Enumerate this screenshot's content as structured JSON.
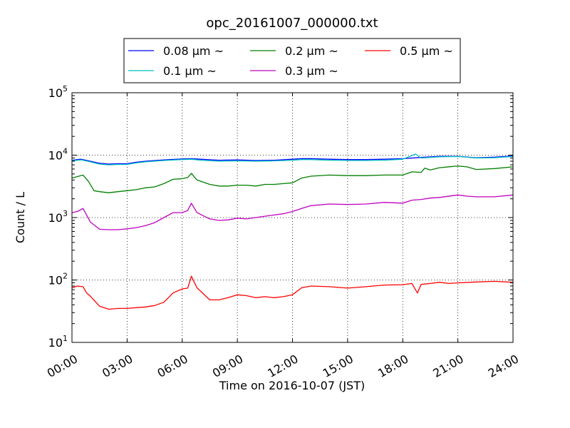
{
  "chart_data": {
    "type": "line",
    "title": "opc_20161007_000000.txt",
    "xlabel": "Time on 2016-10-07 (JST)",
    "ylabel": "Count / L",
    "x_unit": "hours",
    "xlim": [
      0,
      24
    ],
    "ylim": [
      10,
      100000
    ],
    "yscale": "log",
    "grid": true,
    "legend_position": "top",
    "x_ticks": [
      {
        "value": 0,
        "label": "00:00"
      },
      {
        "value": 3,
        "label": "03:00"
      },
      {
        "value": 6,
        "label": "06:00"
      },
      {
        "value": 9,
        "label": "09:00"
      },
      {
        "value": 12,
        "label": "12:00"
      },
      {
        "value": 15,
        "label": "15:00"
      },
      {
        "value": 18,
        "label": "18:00"
      },
      {
        "value": 21,
        "label": "21:00"
      },
      {
        "value": 24,
        "label": "24:00"
      }
    ],
    "y_ticks": [
      {
        "value": 10,
        "base": "10",
        "exp": "1"
      },
      {
        "value": 100,
        "base": "10",
        "exp": "2"
      },
      {
        "value": 1000,
        "base": "10",
        "exp": "3"
      },
      {
        "value": 10000,
        "base": "10",
        "exp": "4"
      },
      {
        "value": 100000,
        "base": "10",
        "exp": "5"
      }
    ],
    "series": [
      {
        "name": "0.08 μm ~",
        "color": "#0000ff",
        "points": [
          [
            0,
            8300
          ],
          [
            0.5,
            8600
          ],
          [
            1,
            8000
          ],
          [
            1.5,
            7400
          ],
          [
            2,
            7200
          ],
          [
            2.5,
            7300
          ],
          [
            3,
            7300
          ],
          [
            3.5,
            7700
          ],
          [
            4,
            8000
          ],
          [
            5,
            8400
          ],
          [
            6,
            8700
          ],
          [
            6.5,
            8800
          ],
          [
            7,
            8600
          ],
          [
            8,
            8300
          ],
          [
            9,
            8400
          ],
          [
            10,
            8200
          ],
          [
            11,
            8300
          ],
          [
            12,
            8600
          ],
          [
            12.5,
            8800
          ],
          [
            13,
            8800
          ],
          [
            14,
            8600
          ],
          [
            15,
            8500
          ],
          [
            16,
            8500
          ],
          [
            17,
            8600
          ],
          [
            18,
            8800
          ],
          [
            19,
            9200
          ],
          [
            20,
            9600
          ],
          [
            21,
            9600
          ],
          [
            22,
            9100
          ],
          [
            23,
            9300
          ],
          [
            24,
            9700
          ]
        ]
      },
      {
        "name": "0.1 μm ~",
        "color": "#00bfbf",
        "points": [
          [
            0,
            8100
          ],
          [
            0.5,
            8400
          ],
          [
            1,
            7800
          ],
          [
            1.5,
            7200
          ],
          [
            2,
            7000
          ],
          [
            2.5,
            7100
          ],
          [
            3,
            7100
          ],
          [
            3.5,
            7500
          ],
          [
            4,
            7800
          ],
          [
            5,
            8200
          ],
          [
            6,
            8500
          ],
          [
            6.5,
            8600
          ],
          [
            7,
            8300
          ],
          [
            8,
            8000
          ],
          [
            9,
            8100
          ],
          [
            10,
            8000
          ],
          [
            11,
            8100
          ],
          [
            12,
            8300
          ],
          [
            12.5,
            8500
          ],
          [
            13,
            8500
          ],
          [
            14,
            8300
          ],
          [
            15,
            8200
          ],
          [
            16,
            8200
          ],
          [
            17,
            8300
          ],
          [
            18,
            8600
          ],
          [
            18.7,
            10400
          ],
          [
            19,
            9000
          ],
          [
            20,
            9400
          ],
          [
            21,
            9500
          ],
          [
            22,
            9000
          ],
          [
            23,
            9100
          ],
          [
            24,
            9500
          ]
        ]
      },
      {
        "name": "0.2 μm ~",
        "color": "#008000",
        "points": [
          [
            0,
            4300
          ],
          [
            0.6,
            4800
          ],
          [
            0.9,
            3800
          ],
          [
            1.2,
            2700
          ],
          [
            1.5,
            2600
          ],
          [
            2,
            2500
          ],
          [
            2.5,
            2600
          ],
          [
            3,
            2700
          ],
          [
            3.5,
            2800
          ],
          [
            4,
            3000
          ],
          [
            4.5,
            3100
          ],
          [
            5,
            3500
          ],
          [
            5.5,
            4100
          ],
          [
            6,
            4200
          ],
          [
            6.3,
            4400
          ],
          [
            6.5,
            5100
          ],
          [
            6.8,
            4000
          ],
          [
            7.5,
            3400
          ],
          [
            8,
            3200
          ],
          [
            8.5,
            3200
          ],
          [
            9,
            3300
          ],
          [
            9.5,
            3300
          ],
          [
            10,
            3200
          ],
          [
            10.5,
            3400
          ],
          [
            11,
            3400
          ],
          [
            11.5,
            3500
          ],
          [
            12,
            3600
          ],
          [
            12.5,
            4300
          ],
          [
            13,
            4600
          ],
          [
            14,
            4800
          ],
          [
            15,
            4700
          ],
          [
            16,
            4700
          ],
          [
            17,
            4800
          ],
          [
            18,
            4800
          ],
          [
            18.5,
            5400
          ],
          [
            19,
            5300
          ],
          [
            19.2,
            6200
          ],
          [
            19.5,
            5800
          ],
          [
            20,
            6300
          ],
          [
            21,
            6700
          ],
          [
            21.5,
            6500
          ],
          [
            22,
            5900
          ],
          [
            23,
            6100
          ],
          [
            24,
            6500
          ]
        ]
      },
      {
        "name": "0.3 μm ~",
        "color": "#bf00bf",
        "points": [
          [
            0,
            1200
          ],
          [
            0.3,
            1250
          ],
          [
            0.6,
            1400
          ],
          [
            0.8,
            1100
          ],
          [
            1,
            850
          ],
          [
            1.5,
            650
          ],
          [
            2,
            640
          ],
          [
            2.5,
            640
          ],
          [
            3,
            660
          ],
          [
            3.5,
            690
          ],
          [
            4,
            740
          ],
          [
            4.5,
            830
          ],
          [
            5,
            1000
          ],
          [
            5.5,
            1200
          ],
          [
            6,
            1200
          ],
          [
            6.3,
            1300
          ],
          [
            6.5,
            1700
          ],
          [
            6.8,
            1200
          ],
          [
            7.5,
            950
          ],
          [
            8,
            900
          ],
          [
            8.5,
            920
          ],
          [
            9,
            980
          ],
          [
            9.5,
            950
          ],
          [
            10,
            1000
          ],
          [
            10.5,
            1050
          ],
          [
            11,
            1100
          ],
          [
            11.5,
            1150
          ],
          [
            12,
            1250
          ],
          [
            12.5,
            1400
          ],
          [
            13,
            1550
          ],
          [
            14,
            1650
          ],
          [
            15,
            1620
          ],
          [
            16,
            1650
          ],
          [
            17,
            1750
          ],
          [
            18,
            1700
          ],
          [
            18.5,
            1900
          ],
          [
            19,
            1950
          ],
          [
            19.5,
            2050
          ],
          [
            20,
            2100
          ],
          [
            21,
            2300
          ],
          [
            21.5,
            2200
          ],
          [
            22,
            2150
          ],
          [
            23,
            2150
          ],
          [
            24,
            2300
          ]
        ]
      },
      {
        "name": "0.5 μm ~",
        "color": "#ff0000",
        "points": [
          [
            0,
            75
          ],
          [
            0.3,
            80
          ],
          [
            0.6,
            78
          ],
          [
            0.8,
            62
          ],
          [
            1,
            55
          ],
          [
            1.5,
            38
          ],
          [
            2,
            34
          ],
          [
            2.5,
            35
          ],
          [
            3,
            35
          ],
          [
            3.5,
            36
          ],
          [
            4,
            37
          ],
          [
            4.5,
            39
          ],
          [
            5,
            44
          ],
          [
            5.5,
            62
          ],
          [
            6,
            72
          ],
          [
            6.3,
            74
          ],
          [
            6.5,
            115
          ],
          [
            6.8,
            75
          ],
          [
            7.5,
            48
          ],
          [
            8,
            48
          ],
          [
            8.5,
            52
          ],
          [
            9,
            58
          ],
          [
            9.5,
            56
          ],
          [
            10,
            52
          ],
          [
            10.5,
            54
          ],
          [
            11,
            52
          ],
          [
            11.5,
            54
          ],
          [
            12,
            58
          ],
          [
            12.5,
            75
          ],
          [
            13,
            80
          ],
          [
            14,
            78
          ],
          [
            15,
            74
          ],
          [
            16,
            78
          ],
          [
            17,
            83
          ],
          [
            18,
            84
          ],
          [
            18.5,
            88
          ],
          [
            18.8,
            62
          ],
          [
            19,
            85
          ],
          [
            19.5,
            88
          ],
          [
            20,
            92
          ],
          [
            20.5,
            88
          ],
          [
            21,
            90
          ],
          [
            22,
            93
          ],
          [
            23,
            95
          ],
          [
            24,
            92
          ]
        ]
      }
    ]
  }
}
